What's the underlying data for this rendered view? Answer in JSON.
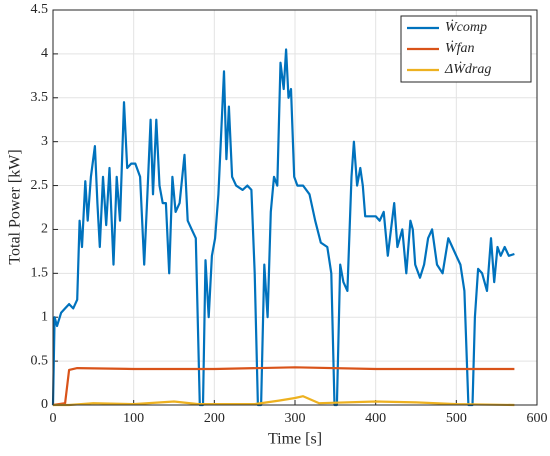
{
  "chart_data": {
    "type": "line",
    "xlabel": "Time [s]",
    "ylabel": "Total Power [kW]",
    "xlim": [
      0,
      600
    ],
    "xticks": [
      0,
      100,
      200,
      300,
      400,
      500,
      600
    ],
    "ylim": [
      0,
      4.5
    ],
    "yticks": [
      0,
      0.5,
      1,
      1.5,
      2,
      2.5,
      3,
      3.5,
      4,
      4.5
    ],
    "grid": true,
    "legend": "upper right",
    "series": [
      {
        "name": "Ẇcomp",
        "color": "#0072bd",
        "x": [
          0,
          2,
          5,
          10,
          15,
          20,
          25,
          30,
          33,
          36,
          40,
          43,
          47,
          52,
          55,
          58,
          62,
          66,
          70,
          75,
          79,
          83,
          88,
          92,
          97,
          102,
          108,
          113,
          117,
          121,
          124,
          128,
          132,
          136,
          140,
          144,
          148,
          152,
          157,
          163,
          167,
          172,
          177,
          182,
          186,
          189,
          193,
          197,
          201,
          205,
          208,
          212,
          215,
          218,
          222,
          227,
          235,
          241,
          246,
          250,
          254,
          258,
          262,
          266,
          270,
          274,
          278,
          282,
          286,
          289,
          292,
          295,
          299,
          303,
          310,
          318,
          325,
          332,
          340,
          345,
          349,
          352,
          356,
          360,
          365,
          370,
          373,
          377,
          381,
          384,
          387,
          392,
          400,
          405,
          410,
          415,
          419,
          423,
          427,
          433,
          438,
          443,
          446,
          449,
          455,
          460,
          465,
          470,
          476,
          483,
          490,
          495,
          500,
          505,
          510,
          515,
          520,
          523,
          527,
          532,
          538,
          543,
          547,
          551,
          555,
          560,
          565,
          572
        ],
        "values": [
          0,
          1.0,
          0.9,
          1.05,
          1.1,
          1.15,
          1.1,
          1.2,
          2.1,
          1.8,
          2.55,
          2.1,
          2.6,
          2.95,
          2.3,
          1.8,
          2.6,
          2.05,
          2.7,
          1.6,
          2.6,
          2.1,
          3.45,
          2.7,
          2.75,
          2.75,
          2.6,
          1.6,
          2.4,
          3.25,
          2.4,
          3.25,
          2.5,
          2.3,
          2.3,
          1.5,
          2.6,
          2.2,
          2.3,
          2.85,
          2.1,
          2.0,
          1.9,
          0,
          0,
          1.65,
          1.0,
          1.7,
          1.9,
          2.4,
          3.0,
          3.8,
          2.8,
          3.4,
          2.6,
          2.5,
          2.45,
          2.5,
          2.45,
          1.5,
          0,
          0,
          1.6,
          1.0,
          2.2,
          2.6,
          2.5,
          3.9,
          3.6,
          4.05,
          3.5,
          3.6,
          2.6,
          2.5,
          2.5,
          2.4,
          2.1,
          1.85,
          1.8,
          1.5,
          0,
          0,
          1.6,
          1.4,
          1.3,
          2.6,
          3.0,
          2.5,
          2.7,
          2.5,
          2.15,
          2.15,
          2.15,
          2.1,
          2.2,
          1.7,
          2.0,
          2.3,
          1.8,
          2.0,
          1.5,
          2.1,
          2.0,
          1.6,
          1.45,
          1.6,
          1.9,
          2.0,
          1.6,
          1.5,
          1.9,
          1.8,
          1.7,
          1.6,
          1.3,
          0,
          0,
          1.0,
          1.55,
          1.5,
          1.3,
          1.9,
          1.4,
          1.8,
          1.7,
          1.8,
          1.7,
          1.72
        ]
      },
      {
        "name": "Ẇfan",
        "color": "#d95319",
        "x": [
          0,
          15,
          20,
          30,
          100,
          200,
          300,
          400,
          500,
          572
        ],
        "values": [
          0,
          0.02,
          0.4,
          0.42,
          0.41,
          0.41,
          0.43,
          0.41,
          0.41,
          0.41
        ]
      },
      {
        "name": "ΔẆdrag",
        "color": "#edb120",
        "x": [
          0,
          20,
          50,
          100,
          150,
          180,
          250,
          280,
          300,
          310,
          330,
          400,
          450,
          500,
          572
        ],
        "values": [
          0,
          0,
          0.02,
          0.01,
          0.04,
          0.01,
          0.01,
          0.05,
          0.08,
          0.1,
          0.02,
          0.04,
          0.03,
          0.01,
          0
        ]
      }
    ]
  }
}
